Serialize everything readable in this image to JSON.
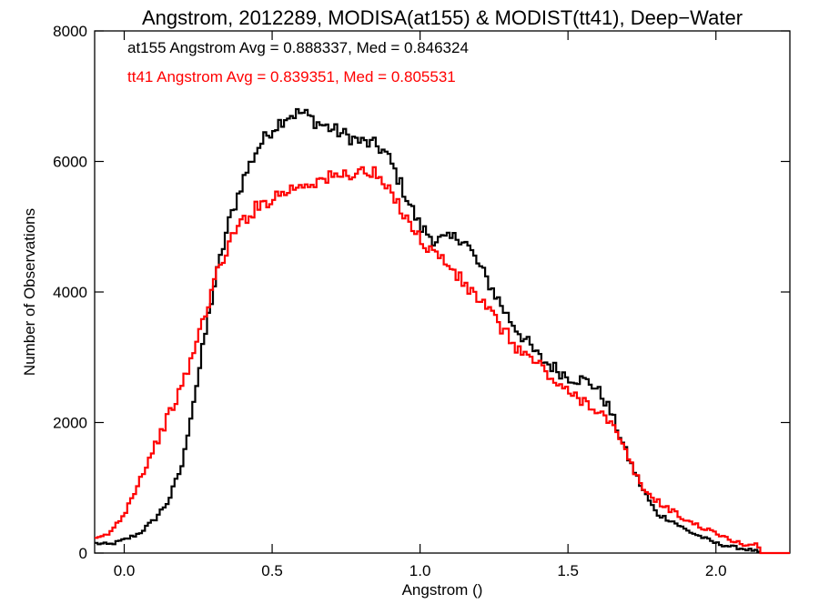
{
  "chart_data": {
    "type": "line",
    "title": "Angstrom, 2012289, MODISA(at155) & MODIST(tt41), Deep−Water",
    "xlabel": "Angstrom ()",
    "ylabel": "Number of Observations",
    "xlim": [
      -0.1,
      2.25
    ],
    "ylim": [
      0,
      8000
    ],
    "x_ticks": [
      0.0,
      0.5,
      1.0,
      1.5,
      2.0
    ],
    "x_tick_labels": [
      "0.0",
      "0.5",
      "1.0",
      "1.5",
      "2.0"
    ],
    "y_ticks": [
      0,
      2000,
      4000,
      6000,
      8000
    ],
    "y_tick_labels": [
      "0",
      "2000",
      "4000",
      "6000",
      "8000"
    ],
    "grid": false,
    "annotations": [
      {
        "text": "at155 Angstrom Avg = 0.888337, Med = 0.846324",
        "color": "#000000"
      },
      {
        "text": "tt41 Angstrom Avg = 0.839351, Med = 0.805531",
        "color": "#ff0000"
      }
    ],
    "series": [
      {
        "color": "#000000",
        "x": [
          -0.1,
          -0.05,
          0.0,
          0.05,
          0.1,
          0.15,
          0.2,
          0.22,
          0.25,
          0.28,
          0.3,
          0.33,
          0.35,
          0.4,
          0.45,
          0.5,
          0.55,
          0.6,
          0.62,
          0.65,
          0.7,
          0.75,
          0.8,
          0.85,
          0.88,
          0.9,
          0.95,
          1.0,
          1.05,
          1.1,
          1.13,
          1.15,
          1.2,
          1.25,
          1.3,
          1.35,
          1.4,
          1.45,
          1.5,
          1.55,
          1.58,
          1.6,
          1.63,
          1.65,
          1.7,
          1.75,
          1.8,
          1.85,
          1.9,
          1.95,
          2.0,
          2.05,
          2.1,
          2.13,
          2.15
        ],
        "values": [
          150,
          130,
          200,
          300,
          500,
          800,
          1400,
          2000,
          2700,
          3500,
          4000,
          4600,
          5000,
          5700,
          6200,
          6500,
          6700,
          6750,
          6700,
          6600,
          6500,
          6400,
          6300,
          6250,
          6150,
          6000,
          5500,
          5000,
          4800,
          4800,
          4850,
          4800,
          4400,
          4000,
          3600,
          3300,
          3000,
          2850,
          2700,
          2650,
          2600,
          2500,
          2300,
          2100,
          1500,
          1000,
          600,
          500,
          350,
          250,
          150,
          100,
          60,
          40,
          0
        ]
      },
      {
        "color": "#ff0000",
        "x": [
          -0.1,
          -0.05,
          0.0,
          0.05,
          0.1,
          0.15,
          0.2,
          0.25,
          0.3,
          0.35,
          0.4,
          0.45,
          0.5,
          0.55,
          0.6,
          0.65,
          0.7,
          0.75,
          0.8,
          0.85,
          0.9,
          0.95,
          1.0,
          1.05,
          1.1,
          1.15,
          1.2,
          1.25,
          1.3,
          1.35,
          1.4,
          1.45,
          1.5,
          1.55,
          1.6,
          1.65,
          1.7,
          1.75,
          1.8,
          1.85,
          1.9,
          1.95,
          2.0,
          2.05,
          2.1,
          2.14,
          2.15,
          2.25
        ],
        "values": [
          200,
          300,
          600,
          1100,
          1600,
          2100,
          2600,
          3300,
          4100,
          4700,
          5100,
          5300,
          5450,
          5550,
          5650,
          5700,
          5750,
          5800,
          5850,
          5800,
          5500,
          5200,
          4800,
          4600,
          4400,
          4100,
          3900,
          3600,
          3300,
          3050,
          2900,
          2650,
          2450,
          2350,
          2200,
          1950,
          1500,
          1000,
          800,
          650,
          500,
          400,
          300,
          200,
          120,
          150,
          0,
          0
        ]
      }
    ]
  }
}
